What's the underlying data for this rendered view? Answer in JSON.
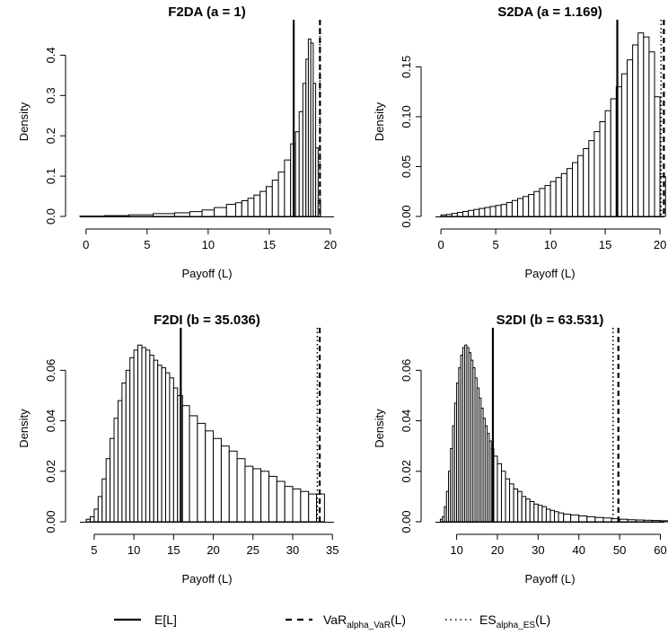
{
  "chart_data": [
    {
      "type": "bar",
      "title": "F2DA (a = 1)",
      "xlabel": "Payoff (L)",
      "ylabel": "Density",
      "xlim": [
        -0.5,
        20.3
      ],
      "ylim": [
        0,
        0.47
      ],
      "xticks": [
        "0",
        "5",
        "10",
        "15",
        "20"
      ],
      "yticks": [
        "0.0",
        "0.1",
        "0.2",
        "0.3",
        "0.4"
      ],
      "distribution": "left-skewed, sharp peak near 18.3",
      "bins": {
        "x": [
          0.5,
          2.5,
          4.5,
          6.5,
          8.0,
          9.0,
          10.0,
          11.0,
          12.0,
          12.5,
          13.0,
          13.5,
          14.0,
          14.5,
          15.0,
          15.5,
          16.0,
          16.5,
          17.0,
          17.3,
          17.6,
          17.9,
          18.1,
          18.3,
          18.5,
          18.7,
          18.9,
          19.1
        ],
        "density": [
          0.001,
          0.002,
          0.004,
          0.007,
          0.009,
          0.012,
          0.016,
          0.022,
          0.03,
          0.034,
          0.039,
          0.045,
          0.053,
          0.062,
          0.074,
          0.09,
          0.11,
          0.14,
          0.18,
          0.21,
          0.26,
          0.33,
          0.39,
          0.44,
          0.43,
          0.33,
          0.17,
          0.04
        ]
      },
      "mean_EL": 17.0,
      "VaR": 19.15,
      "ES": 19.15
    },
    {
      "type": "bar",
      "title": "S2DA (a = 1.169)",
      "xlabel": "Payoff (L)",
      "ylabel": "Density",
      "xlim": [
        -0.5,
        20.4
      ],
      "ylim": [
        0,
        0.19
      ],
      "xticks": [
        "0",
        "5",
        "10",
        "15",
        "20"
      ],
      "yticks": [
        "0.00",
        "0.05",
        "0.10",
        "0.15"
      ],
      "distribution": "left-skewed, peak near 18",
      "bins": {
        "x": [
          0.25,
          0.75,
          1.25,
          1.75,
          2.25,
          2.75,
          3.25,
          3.75,
          4.25,
          4.75,
          5.25,
          5.75,
          6.25,
          6.75,
          7.25,
          7.75,
          8.25,
          8.75,
          9.25,
          9.75,
          10.25,
          10.75,
          11.25,
          11.75,
          12.25,
          12.75,
          13.25,
          13.75,
          14.25,
          14.75,
          15.25,
          15.75,
          16.25,
          16.75,
          17.25,
          17.75,
          18.25,
          18.75,
          19.25,
          19.75,
          20.25
        ],
        "density": [
          0.0015,
          0.002,
          0.003,
          0.004,
          0.005,
          0.006,
          0.007,
          0.008,
          0.009,
          0.01,
          0.011,
          0.012,
          0.014,
          0.016,
          0.018,
          0.02,
          0.022,
          0.025,
          0.028,
          0.031,
          0.035,
          0.039,
          0.043,
          0.048,
          0.054,
          0.061,
          0.068,
          0.076,
          0.085,
          0.095,
          0.106,
          0.118,
          0.13,
          0.143,
          0.157,
          0.172,
          0.184,
          0.18,
          0.165,
          0.12,
          0.04
        ]
      },
      "mean_EL": 16.1,
      "VaR": 20.35,
      "ES": 20.1
    },
    {
      "type": "bar",
      "title": "F2DI (b = 35.036)",
      "xlabel": "Payoff (L)",
      "ylabel": "Density",
      "xlim": [
        3.2,
        35.2
      ],
      "ylim": [
        0,
        0.074
      ],
      "xticks": [
        "5",
        "10",
        "15",
        "20",
        "25",
        "30",
        "35"
      ],
      "yticks": [
        "0.00",
        "0.02",
        "0.04",
        "0.06"
      ],
      "distribution": "right-skewed, peak near 10.5",
      "bins": {
        "x": [
          4.25,
          4.75,
          5.25,
          5.75,
          6.25,
          6.75,
          7.25,
          7.75,
          8.25,
          8.75,
          9.25,
          9.75,
          10.25,
          10.75,
          11.25,
          11.75,
          12.25,
          12.75,
          13.25,
          13.75,
          14.25,
          14.75,
          15.25,
          15.75,
          16.5,
          17.5,
          18.5,
          19.5,
          20.5,
          21.5,
          22.5,
          23.5,
          24.5,
          25.5,
          26.5,
          27.5,
          28.5,
          29.5,
          30.5,
          31.5,
          32.5,
          33.5
        ],
        "density": [
          0.001,
          0.002,
          0.005,
          0.01,
          0.017,
          0.025,
          0.033,
          0.041,
          0.048,
          0.055,
          0.06,
          0.065,
          0.068,
          0.07,
          0.069,
          0.068,
          0.066,
          0.064,
          0.062,
          0.061,
          0.059,
          0.057,
          0.053,
          0.05,
          0.046,
          0.042,
          0.039,
          0.036,
          0.033,
          0.03,
          0.028,
          0.025,
          0.022,
          0.021,
          0.02,
          0.018,
          0.016,
          0.014,
          0.013,
          0.012,
          0.011,
          0.011
        ]
      },
      "mean_EL": 15.9,
      "VaR": 33.4,
      "ES": 33.1
    },
    {
      "type": "bar",
      "title": "S2DI (b = 63.531)",
      "xlabel": "Payoff (L)",
      "ylabel": "Density",
      "xlim": [
        4.8,
        61
      ],
      "ylim": [
        0,
        0.074
      ],
      "xticks": [
        "10",
        "20",
        "30",
        "40",
        "50",
        "60"
      ],
      "yticks": [
        "0.00",
        "0.02",
        "0.04",
        "0.06"
      ],
      "distribution": "right-skewed, peak near 13",
      "bins": {
        "x": [
          6.25,
          6.75,
          7.25,
          7.75,
          8.25,
          8.75,
          9.25,
          9.75,
          10.25,
          10.75,
          11.25,
          11.75,
          12.25,
          12.75,
          13.25,
          13.75,
          14.25,
          14.75,
          15.25,
          15.75,
          16.25,
          16.75,
          17.25,
          17.75,
          18.25,
          18.75,
          19.5,
          20.5,
          21.5,
          22.5,
          23.5,
          24.5,
          25.5,
          26.5,
          27.5,
          28.5,
          29.5,
          30.5,
          31.5,
          32.5,
          33.5,
          34.5,
          35.5,
          37,
          39,
          41,
          43,
          45,
          47,
          49,
          51,
          53,
          55,
          57,
          59,
          61
        ],
        "density": [
          0.001,
          0.002,
          0.006,
          0.012,
          0.02,
          0.029,
          0.038,
          0.047,
          0.055,
          0.061,
          0.066,
          0.069,
          0.07,
          0.069,
          0.067,
          0.064,
          0.061,
          0.057,
          0.053,
          0.049,
          0.045,
          0.041,
          0.038,
          0.035,
          0.032,
          0.029,
          0.026,
          0.023,
          0.02,
          0.017,
          0.015,
          0.013,
          0.012,
          0.01,
          0.009,
          0.008,
          0.007,
          0.0065,
          0.006,
          0.005,
          0.0045,
          0.004,
          0.0035,
          0.003,
          0.0027,
          0.0023,
          0.002,
          0.0017,
          0.0015,
          0.0012,
          0.001,
          0.0008,
          0.0007,
          0.0006,
          0.0005,
          0.0004
        ]
      },
      "mean_EL": 18.9,
      "VaR": 49.7,
      "ES": 48.4
    }
  ],
  "legend": {
    "placement": "bottom",
    "items": [
      {
        "style": "solid",
        "label": "E[L]"
      },
      {
        "style": "dashed",
        "label": "VaR",
        "sub": "alpha_VaR",
        "suffix": "(L)"
      },
      {
        "style": "dotted",
        "label": "ES",
        "sub": "alpha_ES",
        "suffix": "(L)"
      }
    ]
  }
}
